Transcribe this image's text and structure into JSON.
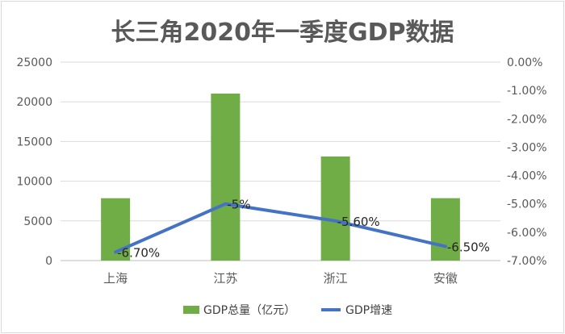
{
  "chart_data": {
    "type": "bar",
    "title": "长三角2020年一季度GDP数据",
    "categories": [
      "上海",
      "江苏",
      "浙江",
      "安徽"
    ],
    "series": [
      {
        "name": "GDP总量（亿元）",
        "type": "bar",
        "axis": "left",
        "values": [
          7857,
          21034,
          13116,
          7862
        ],
        "color": "#70ad47"
      },
      {
        "name": "GDP增速",
        "type": "line",
        "axis": "right",
        "values": [
          -6.7,
          -5.0,
          -5.6,
          -6.5
        ],
        "labels": [
          "-6.70%",
          "-5%",
          "-5.60%",
          "-6.50%"
        ],
        "color": "#4472c4"
      }
    ],
    "y_left": {
      "ylim": [
        0,
        25000
      ],
      "ticks": [
        "0",
        "5000",
        "10000",
        "15000",
        "20000",
        "25000"
      ]
    },
    "y_right": {
      "ylim": [
        -7,
        0
      ],
      "ticks": [
        "0.00%",
        "-1.00%",
        "-2.00%",
        "-3.00%",
        "-4.00%",
        "-5.00%",
        "-6.00%",
        "-7.00%"
      ]
    },
    "grid": true,
    "legend_position": "bottom"
  }
}
